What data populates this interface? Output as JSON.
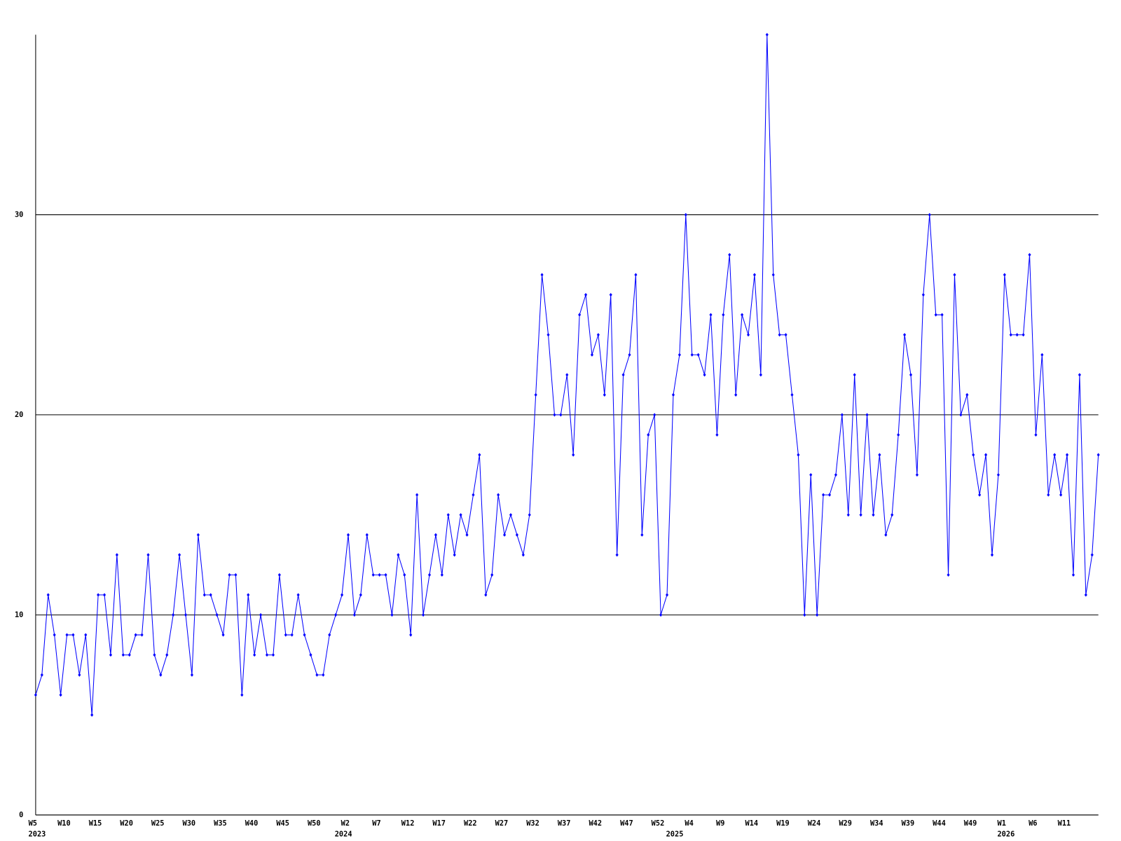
{
  "chart_data": {
    "type": "line",
    "categories": [
      "W5",
      null,
      null,
      null,
      null,
      "W10",
      null,
      null,
      null,
      null,
      "W15",
      null,
      null,
      null,
      null,
      "W20",
      null,
      null,
      null,
      null,
      "W25",
      null,
      null,
      null,
      null,
      "W30",
      null,
      null,
      null,
      null,
      "W35",
      null,
      null,
      null,
      null,
      "W40",
      null,
      null,
      null,
      null,
      "W45",
      null,
      null,
      null,
      null,
      "W50",
      null,
      null,
      null,
      null,
      "W2",
      null,
      null,
      null,
      null,
      "W7",
      null,
      null,
      null,
      null,
      "W12",
      null,
      null,
      null,
      null,
      "W17",
      null,
      null,
      null,
      null,
      "W22",
      null,
      null,
      null,
      null,
      "W27",
      null,
      null,
      null,
      null,
      "W32",
      null,
      null,
      null,
      null,
      "W37",
      null,
      null,
      null,
      null,
      "W42",
      null,
      null,
      null,
      null,
      "W47",
      null,
      null,
      null,
      null,
      "W52",
      null,
      null,
      null,
      null,
      "W4",
      null,
      null,
      null,
      null,
      "W9",
      null,
      null,
      null,
      null,
      "W14",
      null,
      null,
      null,
      null,
      "W19",
      null,
      null,
      null,
      null,
      "W24",
      null,
      null,
      null,
      null,
      "W29",
      null,
      null,
      null,
      null,
      "W34",
      null,
      null,
      null,
      null,
      "W39",
      null,
      null,
      null,
      null,
      "W44",
      null,
      null,
      null,
      null,
      "W49",
      null,
      null,
      null,
      null,
      "W1",
      null,
      null,
      null,
      null,
      "W6",
      null,
      null,
      null,
      null,
      "W11",
      null,
      null,
      null,
      null,
      null
    ],
    "category_groups": [
      "2023",
      null,
      null,
      null,
      null,
      null,
      null,
      null,
      null,
      null,
      null,
      null,
      null,
      null,
      null,
      null,
      null,
      null,
      null,
      null,
      null,
      null,
      null,
      null,
      null,
      null,
      null,
      null,
      null,
      null,
      null,
      null,
      null,
      null,
      null,
      null,
      null,
      null,
      null,
      null,
      null,
      null,
      null,
      null,
      null,
      null,
      null,
      null,
      null,
      "2024",
      null,
      null,
      null,
      null,
      null,
      null,
      null,
      null,
      null,
      null,
      null,
      null,
      null,
      null,
      null,
      null,
      null,
      null,
      null,
      null,
      null,
      null,
      null,
      null,
      null,
      null,
      null,
      null,
      null,
      null,
      null,
      null,
      null,
      null,
      null,
      null,
      null,
      null,
      null,
      null,
      null,
      null,
      null,
      null,
      null,
      null,
      null,
      null,
      null,
      null,
      null,
      null,
      "2025",
      null,
      null,
      null,
      null,
      null,
      null,
      null,
      null,
      null,
      null,
      null,
      null,
      null,
      null,
      null,
      null,
      null,
      null,
      null,
      null,
      null,
      null,
      null,
      null,
      null,
      null,
      null,
      null,
      null,
      null,
      null,
      null,
      null,
      null,
      null,
      null,
      null,
      null,
      null,
      null,
      null,
      null,
      null,
      null,
      null,
      null,
      null,
      null,
      null,
      null,
      null,
      null,
      "2026",
      null,
      null,
      null,
      null,
      null,
      null,
      null,
      null,
      null,
      null,
      null,
      null,
      null,
      null,
      null
    ],
    "values": [
      6,
      7,
      11,
      9,
      6,
      9,
      9,
      7,
      9,
      5,
      11,
      11,
      8,
      13,
      8,
      8,
      9,
      9,
      13,
      8,
      7,
      8,
      10,
      13,
      10,
      7,
      14,
      11,
      11,
      10,
      9,
      12,
      12,
      6,
      11,
      8,
      10,
      8,
      8,
      12,
      9,
      9,
      11,
      9,
      8,
      7,
      7,
      9,
      10,
      11,
      14,
      10,
      11,
      14,
      12,
      12,
      12,
      10,
      13,
      12,
      9,
      16,
      10,
      12,
      14,
      12,
      15,
      13,
      15,
      14,
      16,
      18,
      11,
      12,
      16,
      14,
      15,
      14,
      13,
      15,
      21,
      27,
      24,
      20,
      20,
      22,
      18,
      25,
      26,
      23,
      24,
      21,
      26,
      13,
      22,
      23,
      27,
      14,
      19,
      20,
      10,
      11,
      21,
      23,
      30,
      23,
      23,
      22,
      25,
      19,
      25,
      28,
      21,
      25,
      24,
      27,
      22,
      39,
      27,
      24,
      24,
      21,
      18,
      10,
      17,
      10,
      16,
      16,
      17,
      20,
      15,
      22,
      15,
      20,
      15,
      18,
      14,
      15,
      19,
      24,
      22,
      17,
      26,
      30,
      25,
      25,
      12,
      27,
      20,
      21,
      18,
      16,
      18,
      13,
      17,
      27,
      24,
      24,
      24,
      28,
      19,
      23,
      16,
      18,
      16,
      18,
      12,
      22,
      11,
      13,
      18
    ],
    "color": "#0000ff",
    "ylim": [
      0,
      39
    ],
    "yticks": [
      0,
      10,
      20,
      30
    ],
    "grid": true
  }
}
